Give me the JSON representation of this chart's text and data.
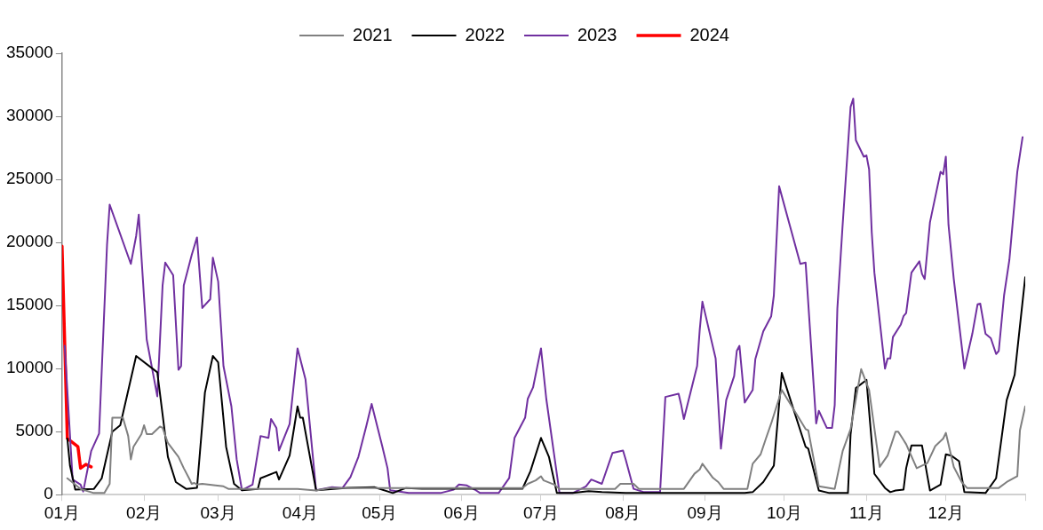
{
  "chart_data": {
    "type": "line",
    "xlim": [
      "--01-01",
      "--12-31"
    ],
    "xticks": [
      {
        "value": "--01-01",
        "label": "01月"
      },
      {
        "value": "--02-01",
        "label": "02月"
      },
      {
        "value": "--03-01",
        "label": "03月"
      },
      {
        "value": "--04-01",
        "label": "04月"
      },
      {
        "value": "--05-01",
        "label": "05月"
      },
      {
        "value": "--06-01",
        "label": "06月"
      },
      {
        "value": "--07-01",
        "label": "07月"
      },
      {
        "value": "--08-01",
        "label": "08月"
      },
      {
        "value": "--09-01",
        "label": "09月"
      },
      {
        "value": "--10-01",
        "label": "10月"
      },
      {
        "value": "--11-01",
        "label": "11月"
      },
      {
        "value": "--12-01",
        "label": "12月"
      },
      {
        "value": "--12-31",
        "label": null
      }
    ],
    "ylim": [
      0,
      35000
    ],
    "yticks": [
      0,
      5000,
      10000,
      15000,
      20000,
      25000,
      30000,
      35000
    ],
    "legend": "top",
    "series": [
      {
        "name": "2021",
        "color": "#808080",
        "x": [
          "--01-03",
          "--01-08",
          "--01-13",
          "--01-17",
          "--01-19",
          "--01-20",
          "--01-24",
          "--01-26",
          "--01-27",
          "--01-28",
          "--01-31",
          "--02-01",
          "--02-02",
          "--02-04",
          "--02-07",
          "--02-08",
          "--02-10",
          "--02-14",
          "--02-16",
          "--02-18",
          "--02-19",
          "--02-20",
          "--02-21",
          "--02-23",
          "--02-28",
          "--03-03",
          "--03-05",
          "--03-31",
          "--04-07",
          "--04-12",
          "--06-24",
          "--06-26",
          "--06-29",
          "--07-01",
          "--07-02",
          "--07-06",
          "--07-08",
          "--07-29",
          "--07-31",
          "--08-05",
          "--08-07",
          "--08-24",
          "--08-28",
          "--08-30",
          "--08-31",
          "--09-04",
          "--09-06",
          "--09-08",
          "--09-17",
          "--09-19",
          "--09-22",
          "--09-24",
          "--09-26",
          "--09-29",
          "--09-30",
          "--10-09",
          "--10-10",
          "--10-14",
          "--10-20",
          "--10-23",
          "--10-26",
          "--10-30",
          "--11-02",
          "--11-06",
          "--11-09",
          "--11-12",
          "--11-13",
          "--11-16",
          "--11-20",
          "--11-24",
          "--11-27",
          "--11-30",
          "--12-01",
          "--12-04",
          "--12-07",
          "--12-09",
          "--12-21",
          "--12-24",
          "--12-28",
          "--12-29",
          "--12-31"
        ],
        "values": [
          1300,
          450,
          130,
          130,
          860,
          6100,
          6100,
          4650,
          2800,
          3800,
          4800,
          5500,
          4800,
          4800,
          5400,
          5300,
          4100,
          3000,
          2100,
          1300,
          860,
          930,
          800,
          860,
          730,
          660,
          450,
          450,
          330,
          530,
          530,
          860,
          1130,
          1460,
          1130,
          800,
          460,
          460,
          860,
          860,
          460,
          460,
          1660,
          2000,
          2450,
          1330,
          1000,
          460,
          460,
          2450,
          3200,
          4450,
          5650,
          7650,
          8300,
          5200,
          5100,
          660,
          460,
          3450,
          5200,
          9950,
          8300,
          2200,
          3100,
          5000,
          5000,
          4000,
          2100,
          2500,
          3850,
          4450,
          4900,
          2200,
          1000,
          530,
          530,
          1000,
          1460,
          5100,
          7000
        ]
      },
      {
        "name": "2022",
        "color": "#000000",
        "x": [
          "--01-03",
          "--01-04",
          "--01-06",
          "--01-13",
          "--01-16",
          "--01-20",
          "--01-23",
          "--01-29",
          "--02-06",
          "--02-10",
          "--02-13",
          "--02-17",
          "--02-21",
          "--02-24",
          "--02-27",
          "--03-01",
          "--03-04",
          "--03-07",
          "--03-10",
          "--03-16",
          "--03-17",
          "--03-23",
          "--03-24",
          "--03-28",
          "--03-31",
          "--04-01",
          "--04-02",
          "--04-07",
          "--04-19",
          "--04-29",
          "--05-06",
          "--05-11",
          "--05-17",
          "--06-24",
          "--06-27",
          "--07-01",
          "--07-04",
          "--07-07",
          "--07-13",
          "--07-19",
          "--07-24",
          "--08-02",
          "--08-23",
          "--09-16",
          "--09-19",
          "--09-23",
          "--09-27",
          "--09-30",
          "--10-09",
          "--10-10",
          "--10-14",
          "--10-18",
          "--10-25",
          "--10-26",
          "--10-28",
          "--11-01",
          "--11-04",
          "--11-08",
          "--11-10",
          "--11-12",
          "--11-15",
          "--11-16",
          "--11-18",
          "--11-22",
          "--11-24",
          "--11-25",
          "--11-29",
          "--12-01",
          "--12-03",
          "--12-06",
          "--12-08",
          "--12-16",
          "--12-20",
          "--12-24",
          "--12-27",
          "--12-31"
        ],
        "values": [
          4450,
          2300,
          400,
          450,
          1300,
          5000,
          5500,
          11000,
          9700,
          3000,
          1000,
          450,
          550,
          8100,
          11000,
          10500,
          3800,
          860,
          350,
          450,
          1300,
          1800,
          1200,
          3100,
          7000,
          6100,
          6100,
          350,
          550,
          600,
          130,
          530,
          470,
          470,
          1850,
          4500,
          3000,
          130,
          130,
          270,
          200,
          130,
          130,
          130,
          200,
          1000,
          2300,
          9650,
          3800,
          3650,
          330,
          130,
          130,
          4800,
          8450,
          9100,
          1650,
          530,
          200,
          330,
          400,
          2100,
          3900,
          3900,
          1500,
          330,
          800,
          3200,
          3100,
          2650,
          200,
          130,
          1300,
          7500,
          9500,
          17250
        ]
      },
      {
        "name": "2023",
        "color": "#7030a0",
        "x": [
          "--01-02",
          "--01-05",
          "--01-08",
          "--01-09",
          "--01-12",
          "--01-15",
          "--01-18",
          "--01-19",
          "--01-27",
          "--01-29",
          "--01-30",
          "--02-02",
          "--02-06",
          "--02-08",
          "--02-09",
          "--02-12",
          "--02-14",
          "--02-15",
          "--02-16",
          "--02-19",
          "--02-21",
          "--02-23",
          "--02-26",
          "--02-27",
          "--03-01",
          "--03-03",
          "--03-06",
          "--03-08",
          "--03-10",
          "--03-14",
          "--03-17",
          "--03-20",
          "--03-21",
          "--03-23",
          "--03-24",
          "--03-28",
          "--03-31",
          "--04-03",
          "--04-07",
          "--04-13",
          "--04-17",
          "--04-20",
          "--04-23",
          "--04-26",
          "--04-28",
          "--05-02",
          "--05-04",
          "--05-05",
          "--05-12",
          "--05-24",
          "--05-29",
          "--05-31",
          "--06-03",
          "--06-06",
          "--06-08",
          "--06-15",
          "--06-19",
          "--06-21",
          "--06-25",
          "--06-26",
          "--06-28",
          "--07-01",
          "--07-03",
          "--07-08",
          "--07-13",
          "--07-18",
          "--07-20",
          "--07-24",
          "--07-28",
          "--08-01",
          "--08-02",
          "--08-05",
          "--08-09",
          "--08-15",
          "--08-17",
          "--08-22",
          "--08-23",
          "--08-24",
          "--08-29",
          "--08-30",
          "--08-31",
          "--09-05",
          "--09-07",
          "--09-09",
          "--09-12",
          "--09-13",
          "--09-14",
          "--09-16",
          "--09-19",
          "--09-20",
          "--09-23",
          "--09-26",
          "--09-27",
          "--09-29",
          "--10-07",
          "--10-09",
          "--10-13",
          "--10-14",
          "--10-17",
          "--10-19",
          "--10-20",
          "--10-21",
          "--10-23",
          "--10-26",
          "--10-27",
          "--10-28",
          "--10-31",
          "--11-01",
          "--11-02",
          "--11-03",
          "--11-04",
          "--11-08",
          "--11-09",
          "--11-10",
          "--11-11",
          "--11-14",
          "--11-15",
          "--11-16",
          "--11-18",
          "--11-21",
          "--11-22",
          "--11-23",
          "--11-25",
          "--11-29",
          "--11-30",
          "--12-01",
          "--12-02",
          "--12-04",
          "--12-08",
          "--12-11",
          "--12-13",
          "--12-14",
          "--12-16",
          "--12-18",
          "--12-20",
          "--12-21",
          "--12-23",
          "--12-25",
          "--12-28",
          "--12-30"
        ],
        "values": [
          11800,
          1200,
          800,
          250,
          3450,
          4850,
          19800,
          23000,
          18300,
          20500,
          22200,
          12300,
          7800,
          16600,
          18400,
          17400,
          9900,
          10200,
          16600,
          19000,
          20400,
          14800,
          15500,
          18800,
          16900,
          10200,
          7000,
          2800,
          350,
          800,
          4650,
          4500,
          6000,
          5300,
          3500,
          5600,
          11600,
          9150,
          350,
          600,
          530,
          1400,
          3000,
          5450,
          7200,
          3850,
          2100,
          350,
          130,
          130,
          400,
          800,
          730,
          400,
          130,
          130,
          1330,
          4500,
          6100,
          7600,
          8500,
          11600,
          7600,
          130,
          130,
          660,
          1200,
          860,
          3300,
          3500,
          2800,
          460,
          200,
          200,
          7750,
          8000,
          7100,
          6000,
          10200,
          13100,
          15300,
          10800,
          3650,
          7500,
          9400,
          11400,
          11800,
          7300,
          8300,
          10750,
          12950,
          14150,
          15800,
          24450,
          18300,
          18400,
          5650,
          6650,
          5300,
          5300,
          7100,
          14750,
          21400,
          30750,
          31400,
          28100,
          26800,
          26900,
          25800,
          20800,
          17600,
          10000,
          10800,
          10800,
          12500,
          13500,
          14150,
          14400,
          17600,
          18500,
          17500,
          17100,
          21600,
          25600,
          25400,
          26800,
          21400,
          17100,
          10000,
          12750,
          15100,
          15150,
          12750,
          12400,
          11150,
          11400,
          15800,
          18600,
          25600,
          28350
        ]
      },
      {
        "name": "2024",
        "color": "#ff0000",
        "x": [
          "--01-01",
          "--01-03",
          "--01-07",
          "--01-08",
          "--01-10",
          "--01-12"
        ],
        "values": [
          19700,
          4450,
          3800,
          2100,
          2400,
          2200
        ]
      }
    ]
  }
}
